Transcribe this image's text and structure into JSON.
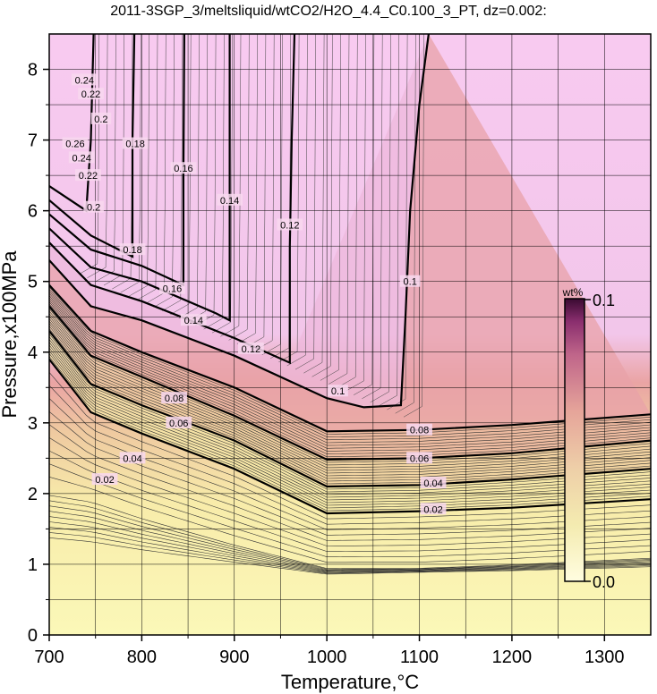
{
  "chart_data": {
    "type": "heatmap",
    "title": "2011-3SGP_3/meltsliquid/wtCO2/H2O_4.4_C0.100_3_PT, dz=0.002:",
    "xlabel": "Temperature,°C",
    "ylabel": "Pressure,x100MPa",
    "xlim": [
      700,
      1350
    ],
    "ylim": [
      0,
      8.5
    ],
    "x_ticks": [
      "700",
      "800",
      "900",
      "1000",
      "1100",
      "1200",
      "1300"
    ],
    "y_ticks": [
      "0",
      "1",
      "2",
      "3",
      "4",
      "5",
      "6",
      "7",
      "8"
    ],
    "grid": true,
    "colorbar": {
      "label": "wt%",
      "min_label": "0.0",
      "max_label": "0.1",
      "range": [
        0,
        0.1
      ],
      "placement": "right-inside"
    },
    "contour_interval": 0.002,
    "labeled_contours": [
      {
        "level": "0.02",
        "points": [
          [
            700,
            3.9
          ],
          [
            745,
            3.15
          ],
          [
            800,
            2.85
          ],
          [
            900,
            2.35
          ],
          [
            1000,
            1.72
          ],
          [
            1100,
            1.75
          ],
          [
            1200,
            1.8
          ],
          [
            1350,
            1.92
          ]
        ]
      },
      {
        "level": "0.04",
        "points": [
          [
            700,
            4.3
          ],
          [
            745,
            3.55
          ],
          [
            800,
            3.25
          ],
          [
            900,
            2.75
          ],
          [
            1000,
            2.1
          ],
          [
            1100,
            2.12
          ],
          [
            1200,
            2.2
          ],
          [
            1350,
            2.35
          ]
        ]
      },
      {
        "level": "0.06",
        "points": [
          [
            700,
            4.65
          ],
          [
            745,
            3.95
          ],
          [
            800,
            3.65
          ],
          [
            900,
            3.1
          ],
          [
            1000,
            2.48
          ],
          [
            1100,
            2.5
          ],
          [
            1200,
            2.57
          ],
          [
            1350,
            2.75
          ]
        ]
      },
      {
        "level": "0.08",
        "points": [
          [
            700,
            4.95
          ],
          [
            745,
            4.3
          ],
          [
            800,
            4.0
          ],
          [
            900,
            3.5
          ],
          [
            1000,
            2.88
          ],
          [
            1100,
            2.9
          ],
          [
            1200,
            2.97
          ],
          [
            1350,
            3.12
          ]
        ]
      },
      {
        "level": "0.1",
        "points": [
          [
            700,
            5.3
          ],
          [
            745,
            4.65
          ],
          [
            800,
            4.45
          ],
          [
            900,
            3.95
          ],
          [
            1000,
            3.35
          ],
          [
            1040,
            3.22
          ],
          [
            1080,
            3.25
          ],
          [
            1085,
            4.5
          ],
          [
            1090,
            6.0
          ],
          [
            1100,
            7.5
          ],
          [
            1110,
            8.5
          ]
        ]
      },
      {
        "level": "0.12",
        "points": [
          [
            700,
            5.55
          ],
          [
            745,
            4.95
          ],
          [
            800,
            4.72
          ],
          [
            900,
            4.2
          ],
          [
            960,
            3.85
          ],
          [
            960,
            5.5
          ],
          [
            962,
            7.0
          ],
          [
            965,
            8.5
          ]
        ]
      },
      {
        "level": "0.14",
        "points": [
          [
            700,
            5.75
          ],
          [
            745,
            5.2
          ],
          [
            800,
            5.0
          ],
          [
            880,
            4.55
          ],
          [
            895,
            4.45
          ],
          [
            895,
            6.0
          ],
          [
            895,
            8.5
          ]
        ]
      },
      {
        "level": "0.16",
        "points": [
          [
            700,
            5.95
          ],
          [
            745,
            5.45
          ],
          [
            800,
            5.22
          ],
          [
            845,
            4.95
          ],
          [
            845,
            6.5
          ],
          [
            846,
            8.5
          ]
        ]
      },
      {
        "level": "0.18",
        "points": [
          [
            700,
            6.15
          ],
          [
            745,
            5.65
          ],
          [
            790,
            5.35
          ],
          [
            790,
            7.0
          ],
          [
            792,
            8.5
          ]
        ]
      },
      {
        "level": "0.2",
        "points": [
          [
            700,
            6.35
          ],
          [
            740,
            6.0
          ],
          [
            745,
            7.0
          ],
          [
            748,
            8.5
          ]
        ]
      }
    ],
    "contour_label_positions": [
      {
        "text": "0.02",
        "x": 760,
        "y": 2.2
      },
      {
        "text": "0.02",
        "x": 1115,
        "y": 1.78
      },
      {
        "text": "0.04",
        "x": 790,
        "y": 2.5
      },
      {
        "text": "0.04",
        "x": 1115,
        "y": 2.15
      },
      {
        "text": "0.06",
        "x": 840,
        "y": 3.0
      },
      {
        "text": "0.06",
        "x": 1100,
        "y": 2.5
      },
      {
        "text": "0.08",
        "x": 835,
        "y": 3.35
      },
      {
        "text": "0.08",
        "x": 1100,
        "y": 2.9
      },
      {
        "text": "0.1",
        "x": 1012,
        "y": 3.45
      },
      {
        "text": "0.1",
        "x": 1090,
        "y": 5.0
      },
      {
        "text": "0.12",
        "x": 918,
        "y": 4.05
      },
      {
        "text": "0.12",
        "x": 960,
        "y": 5.8
      },
      {
        "text": "0.14",
        "x": 856,
        "y": 4.45
      },
      {
        "text": "0.14",
        "x": 895,
        "y": 6.15
      },
      {
        "text": "0.16",
        "x": 833,
        "y": 4.9
      },
      {
        "text": "0.16",
        "x": 845,
        "y": 6.6
      },
      {
        "text": "0.18",
        "x": 790,
        "y": 5.45
      },
      {
        "text": "0.18",
        "x": 793,
        "y": 6.95
      },
      {
        "text": "0.2",
        "x": 748,
        "y": 6.05
      },
      {
        "text": "0.2",
        "x": 756,
        "y": 7.3
      },
      {
        "text": "0.22",
        "x": 742,
        "y": 6.5
      },
      {
        "text": "0.22",
        "x": 745,
        "y": 7.65
      },
      {
        "text": "0.24",
        "x": 735,
        "y": 6.75
      },
      {
        "text": "0.24",
        "x": 738,
        "y": 7.85
      },
      {
        "text": "0.26",
        "x": 728,
        "y": 6.95
      }
    ]
  }
}
